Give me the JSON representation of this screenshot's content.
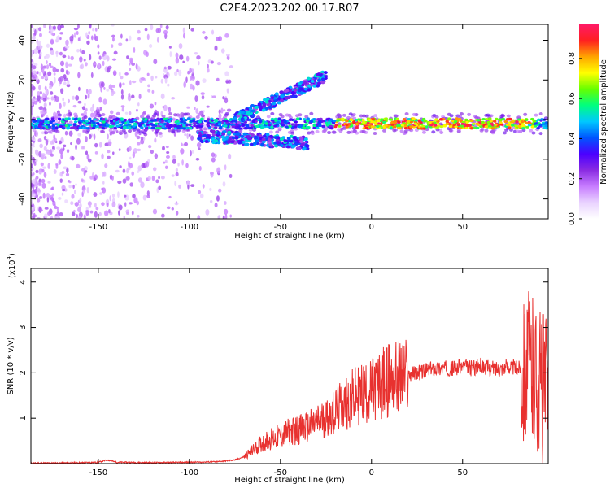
{
  "figure": {
    "title": "C2E4.2023.202.00.17.R07"
  },
  "colors": {
    "snr_line": "#e8312f",
    "colormap": [
      "#ffffff",
      "#e9d3ff",
      "#c77dff",
      "#8a2be2",
      "#4b00ff",
      "#0055ff",
      "#00c8ff",
      "#00ff7f",
      "#66ff00",
      "#ffff00",
      "#ffa500",
      "#ff2020",
      "#ff1a66"
    ]
  },
  "chart_data": [
    {
      "type": "heatmap",
      "xlabel": "Height of straight line (km)",
      "ylabel": "Frequency (Hz)",
      "xlim": [
        -187,
        97
      ],
      "ylim": [
        -50,
        48
      ],
      "xticks": [
        -150,
        -100,
        -50,
        0,
        50
      ],
      "yticks": [
        -40,
        -20,
        0,
        20,
        40
      ],
      "colorbar": {
        "label": "Normalized spectral amplitude",
        "range": [
          0.0,
          0.97
        ],
        "ticks": [
          0.0,
          0.2,
          0.4,
          0.6,
          0.8
        ]
      },
      "features": {
        "main_band": {
          "freq_hz": -2,
          "x_range": [
            -187,
            97
          ],
          "peak_amplitude": 0.95
        },
        "upper_branch": {
          "x_range": [
            -75,
            -25
          ],
          "freq_hz_start": 0,
          "freq_hz_end": 22
        },
        "lower_branch": {
          "x_range": [
            -95,
            -35
          ],
          "freq_hz_start": -8,
          "freq_hz_end": -12
        }
      }
    },
    {
      "type": "line",
      "xlabel": "Height of straight line (km)",
      "ylabel": "SNR (10 * v/v)",
      "y_scale_label": "(x10",
      "y_scale_exp": "4",
      "xlim": [
        -187,
        97
      ],
      "ylim": [
        0,
        4.3
      ],
      "xticks": [
        -150,
        -100,
        -50,
        0,
        50
      ],
      "yticks": [
        1,
        2,
        3,
        4
      ],
      "series": [
        {
          "x": [
            -187,
            -160,
            -150,
            -145,
            -140,
            -120,
            -100,
            -85,
            -75,
            -70,
            -65,
            -60,
            -55,
            -50,
            -45,
            -40,
            -35,
            -30,
            -25,
            -20,
            -15,
            -10,
            -5,
            0,
            5,
            10,
            15,
            20,
            25,
            30,
            35,
            40,
            45,
            50,
            55,
            60,
            65,
            70,
            75,
            80,
            85,
            90,
            95
          ],
          "y": [
            0.01,
            0.02,
            0.03,
            0.08,
            0.03,
            0.02,
            0.03,
            0.04,
            0.08,
            0.15,
            0.3,
            0.45,
            0.55,
            0.6,
            0.7,
            0.75,
            0.8,
            0.9,
            1.0,
            1.15,
            1.3,
            1.45,
            1.55,
            1.6,
            1.75,
            1.85,
            1.9,
            1.95,
            2.0,
            2.05,
            2.1,
            2.1,
            2.1,
            2.15,
            2.1,
            2.15,
            2.1,
            2.1,
            2.15,
            2.1,
            2.2,
            2.0,
            1.6
          ]
        }
      ]
    }
  ]
}
